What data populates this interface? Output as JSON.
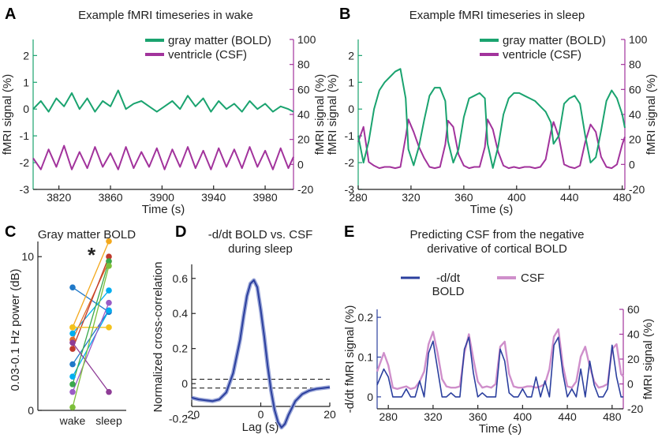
{
  "colors": {
    "gm": "#1aa36f",
    "csf": "#a2339c",
    "bold": "#2b3f9e",
    "csf_light": "#cf8fcb",
    "wake": "#00aeef",
    "ink": "#222222"
  },
  "chart_data": [
    {
      "panel": "A",
      "type": "line",
      "title": "Example fMRI timeseries in wake",
      "xlabel": "Time (s)",
      "ylabel_left": "fMRI signal (%)",
      "ylabel_right": "fMRI signal (%)",
      "xlim": [
        3800,
        4002
      ],
      "ylim_left": [
        -3,
        2.6
      ],
      "ylim_right": [
        -20,
        100
      ],
      "xticks": [
        "3820",
        "3860",
        "3900",
        "3940",
        "3980"
      ],
      "yticks_left": [
        "2",
        "1",
        "0",
        "-1",
        "-2",
        "-3"
      ],
      "yticks_right": [
        "100",
        "80",
        "60",
        "40",
        "20",
        "0",
        "-20"
      ],
      "legend": [
        "gray matter (BOLD)",
        "ventricle (CSF)"
      ],
      "series": [
        {
          "name": "gray matter (BOLD)",
          "axis": "left",
          "x": [
            3800,
            3806,
            3812,
            3818,
            3824,
            3830,
            3836,
            3842,
            3848,
            3854,
            3860,
            3866,
            3872,
            3878,
            3884,
            3890,
            3896,
            3902,
            3908,
            3914,
            3920,
            3926,
            3932,
            3938,
            3944,
            3950,
            3956,
            3962,
            3968,
            3974,
            3980,
            3986,
            3992,
            3998,
            4002
          ],
          "y": [
            0.0,
            0.3,
            -0.1,
            0.4,
            0.1,
            0.6,
            0.0,
            0.4,
            -0.1,
            0.3,
            0.1,
            0.7,
            0.0,
            0.2,
            0.3,
            0.1,
            -0.1,
            0.1,
            0.3,
            0.0,
            0.5,
            0.1,
            0.4,
            -0.1,
            0.3,
            0.0,
            0.2,
            -0.1,
            0.3,
            0.0,
            0.2,
            -0.1,
            0.1,
            0.0,
            -0.1
          ]
        },
        {
          "name": "ventricle (CSF)",
          "axis": "right",
          "x": [
            3800,
            3806,
            3812,
            3818,
            3824,
            3830,
            3836,
            3842,
            3848,
            3854,
            3860,
            3866,
            3872,
            3878,
            3884,
            3890,
            3896,
            3902,
            3908,
            3914,
            3920,
            3926,
            3932,
            3938,
            3944,
            3950,
            3956,
            3962,
            3968,
            3974,
            3980,
            3986,
            3992,
            3998,
            4002
          ],
          "y": [
            5,
            -4,
            12,
            -2,
            15,
            -4,
            10,
            -3,
            14,
            -2,
            9,
            -4,
            14,
            -3,
            10,
            -2,
            13,
            -4,
            12,
            -2,
            14,
            -3,
            11,
            -4,
            13,
            -2,
            12,
            -3,
            14,
            -2,
            11,
            -4,
            13,
            -3,
            6
          ]
        }
      ]
    },
    {
      "panel": "B",
      "type": "line",
      "title": "Example fMRI timeseries in sleep",
      "xlabel": "Time (s)",
      "ylabel_left": "fMRI signal (%)",
      "ylabel_right": "fMRI signal (%)",
      "xlim": [
        280,
        482
      ],
      "ylim_left": [
        -3,
        2.6
      ],
      "ylim_right": [
        -20,
        100
      ],
      "xticks": [
        "280",
        "320",
        "360",
        "400",
        "440",
        "480"
      ],
      "yticks_left": [
        "2",
        "1",
        "0",
        "-1",
        "-2",
        "-3"
      ],
      "yticks_right": [
        "100",
        "80",
        "60",
        "40",
        "20",
        "0",
        "-20"
      ],
      "legend": [
        "gray matter (BOLD)",
        "ventricle (CSF)"
      ],
      "series": [
        {
          "name": "gray matter (BOLD)",
          "axis": "left",
          "x": [
            280,
            284,
            288,
            292,
            296,
            300,
            304,
            308,
            312,
            316,
            318,
            322,
            326,
            330,
            334,
            338,
            342,
            346,
            348,
            352,
            356,
            360,
            364,
            368,
            372,
            376,
            378,
            382,
            386,
            390,
            394,
            398,
            402,
            406,
            410,
            414,
            418,
            422,
            426,
            428,
            432,
            436,
            440,
            444,
            448,
            452,
            456,
            460,
            464,
            468,
            472,
            476,
            480,
            482
          ],
          "y": [
            -1.0,
            -2.0,
            -1.2,
            0.0,
            0.7,
            1.0,
            1.2,
            1.4,
            1.5,
            0.4,
            -1.5,
            -2.1,
            -1.4,
            -0.4,
            0.5,
            0.8,
            0.8,
            0.3,
            -1.2,
            -2.0,
            -1.5,
            -0.3,
            0.4,
            0.5,
            0.6,
            0.4,
            -1.3,
            -2.2,
            -1.4,
            -0.2,
            0.4,
            0.6,
            0.6,
            0.5,
            0.4,
            0.3,
            0.1,
            -0.1,
            -0.5,
            -1.3,
            -1.0,
            0.2,
            0.4,
            0.5,
            0.2,
            -1.0,
            -2.0,
            -1.8,
            -0.8,
            0.3,
            0.7,
            0.4,
            -0.2,
            -0.7
          ]
        },
        {
          "name": "ventricle (CSF)",
          "axis": "right",
          "x": [
            280,
            284,
            288,
            292,
            296,
            300,
            304,
            308,
            312,
            316,
            318,
            322,
            326,
            330,
            334,
            338,
            342,
            346,
            348,
            352,
            356,
            360,
            364,
            368,
            372,
            376,
            378,
            382,
            386,
            390,
            394,
            398,
            402,
            406,
            410,
            414,
            418,
            422,
            426,
            428,
            432,
            436,
            440,
            444,
            448,
            452,
            456,
            460,
            464,
            468,
            472,
            476,
            480,
            482
          ],
          "y": [
            18,
            30,
            2,
            -1,
            -3,
            -2,
            -2,
            -3,
            -2,
            22,
            36,
            26,
            14,
            5,
            -2,
            -3,
            -2,
            16,
            35,
            30,
            8,
            -1,
            -3,
            -2,
            -2,
            14,
            36,
            28,
            10,
            -1,
            -3,
            -2,
            -3,
            -2,
            -2,
            -3,
            -2,
            4,
            26,
            34,
            22,
            0,
            -2,
            -3,
            -1,
            18,
            32,
            26,
            6,
            -2,
            -3,
            0,
            16,
            22
          ]
        }
      ]
    },
    {
      "panel": "C",
      "type": "scatter",
      "title": "Gray matter BOLD",
      "ylabel": "0.03-0.1 Hz power (dB)",
      "ylim": [
        0,
        11.5
      ],
      "yticks": [
        "0",
        "10"
      ],
      "categories": [
        "wake",
        "sleep"
      ],
      "annotation": "*",
      "pairs": [
        {
          "wake": 8.0,
          "sleep": 6.4,
          "color": "#1f78c8"
        },
        {
          "wake": 5.4,
          "sleep": 11.0,
          "color": "#f3a81c"
        },
        {
          "wake": 5.0,
          "sleep": 7.8,
          "color": "#00aeef"
        },
        {
          "wake": 4.6,
          "sleep": 9.7,
          "color": "#e06c2a"
        },
        {
          "wake": 4.0,
          "sleep": 10.0,
          "color": "#c0392b"
        },
        {
          "wake": 3.0,
          "sleep": 6.5,
          "color": "#1f78c8"
        },
        {
          "wake": 5.4,
          "sleep": 5.4,
          "color": "#f3c21c"
        },
        {
          "wake": 2.2,
          "sleep": 6.5,
          "color": "#00aeef"
        },
        {
          "wake": 1.7,
          "sleep": 9.7,
          "color": "#3aa84b"
        },
        {
          "wake": 1.2,
          "sleep": 7.0,
          "color": "#9a5cc6"
        },
        {
          "wake": 4.4,
          "sleep": 1.2,
          "color": "#8e3c96"
        },
        {
          "wake": 0.2,
          "sleep": 9.4,
          "color": "#7cbf3a"
        }
      ]
    },
    {
      "panel": "D",
      "type": "line",
      "title": "-d/dt BOLD vs. CSF during sleep",
      "title_lines": [
        "-d/dt BOLD vs. CSF",
        "during sleep"
      ],
      "xlabel": "Lag (s)",
      "ylabel": "Normalized cross-correlation",
      "xlim": [
        -20,
        20
      ],
      "ylim": [
        -0.13,
        0.68
      ],
      "xticks": [
        "-20",
        "0",
        "20"
      ],
      "yticks": [
        "0.6",
        "0.4",
        "0.2",
        "0",
        "-0.2"
      ],
      "thresholds": [
        0.025,
        -0.025
      ],
      "series": [
        {
          "x": [
            -20,
            -18,
            -16,
            -14,
            -12,
            -10,
            -8,
            -6,
            -5,
            -4,
            -3,
            -2,
            -1,
            0,
            1,
            2,
            3,
            4,
            5,
            6,
            7,
            8,
            10,
            12,
            14,
            16,
            18,
            20
          ],
          "y": [
            -0.08,
            -0.09,
            -0.095,
            -0.1,
            -0.09,
            -0.05,
            0.06,
            0.25,
            0.38,
            0.5,
            0.57,
            0.59,
            0.55,
            0.42,
            0.27,
            0.1,
            -0.04,
            -0.15,
            -0.22,
            -0.25,
            -0.23,
            -0.18,
            -0.1,
            -0.06,
            -0.04,
            -0.03,
            -0.025,
            -0.02
          ]
        }
      ]
    },
    {
      "panel": "E",
      "type": "line",
      "title": "Predicting CSF from the negative derivative of cortical BOLD",
      "title_lines": [
        "Predicting CSF from the negative",
        "derivative of cortical BOLD"
      ],
      "xlabel": "Time (s)",
      "ylabel_left": "-d/dt fMRI signal (%)",
      "ylabel_right": "fMRI signal (%)",
      "xlim": [
        270,
        490
      ],
      "ylim_left": [
        -0.03,
        0.22
      ],
      "ylim_right": [
        -20,
        60
      ],
      "xticks": [
        "280",
        "320",
        "360",
        "400",
        "440",
        "480"
      ],
      "yticks_left": [
        "0.2",
        "0.1",
        "0"
      ],
      "yticks_right": [
        "60",
        "40",
        "20",
        "0",
        "-20"
      ],
      "legend": [
        "-d/dt BOLD",
        "CSF"
      ],
      "series": [
        {
          "name": "-d/dt BOLD",
          "axis": "left",
          "x": [
            270,
            276,
            280,
            284,
            288,
            292,
            296,
            300,
            304,
            308,
            312,
            316,
            320,
            324,
            328,
            332,
            336,
            340,
            344,
            348,
            352,
            356,
            360,
            364,
            368,
            372,
            376,
            380,
            384,
            388,
            392,
            396,
            400,
            404,
            408,
            412,
            416,
            420,
            424,
            428,
            432,
            436,
            440,
            444,
            448,
            452,
            456,
            460,
            464,
            468,
            472,
            476,
            480,
            484,
            488,
            490
          ],
          "y": [
            0.03,
            0.07,
            0.05,
            0.0,
            0.0,
            0.0,
            0.02,
            0.0,
            0.0,
            0.04,
            0.0,
            0.11,
            0.14,
            0.07,
            0.0,
            0.0,
            0.01,
            0.0,
            0.0,
            0.12,
            0.15,
            0.06,
            0.0,
            0.01,
            0.0,
            0.0,
            0.0,
            0.12,
            0.09,
            0.01,
            0.0,
            0.0,
            0.02,
            0.0,
            0.0,
            0.05,
            0.0,
            0.04,
            0.0,
            0.13,
            0.15,
            0.06,
            0.0,
            0.02,
            0.0,
            0.07,
            0.0,
            0.09,
            0.03,
            0.0,
            0.0,
            0.02,
            0.13,
            0.05,
            0.0,
            0.0
          ]
        },
        {
          "name": "CSF",
          "axis": "right",
          "x": [
            270,
            276,
            280,
            284,
            288,
            292,
            296,
            300,
            304,
            308,
            312,
            316,
            320,
            324,
            328,
            332,
            336,
            340,
            344,
            348,
            352,
            356,
            360,
            364,
            368,
            372,
            376,
            380,
            384,
            388,
            392,
            396,
            400,
            404,
            408,
            412,
            416,
            420,
            424,
            428,
            432,
            436,
            440,
            444,
            448,
            452,
            456,
            460,
            464,
            468,
            472,
            476,
            480,
            484,
            488,
            490
          ],
          "y": [
            10,
            25,
            15,
            -3,
            -4,
            -3,
            -2,
            -4,
            -3,
            2,
            10,
            32,
            42,
            25,
            4,
            -2,
            -3,
            -3,
            -2,
            25,
            40,
            20,
            2,
            -3,
            -2,
            -3,
            0,
            30,
            34,
            8,
            -2,
            -3,
            -3,
            -2,
            -2,
            -3,
            -2,
            0,
            12,
            38,
            44,
            15,
            -2,
            -3,
            2,
            22,
            30,
            14,
            2,
            -3,
            -2,
            0,
            28,
            32,
            8,
            6
          ]
        }
      ]
    }
  ]
}
